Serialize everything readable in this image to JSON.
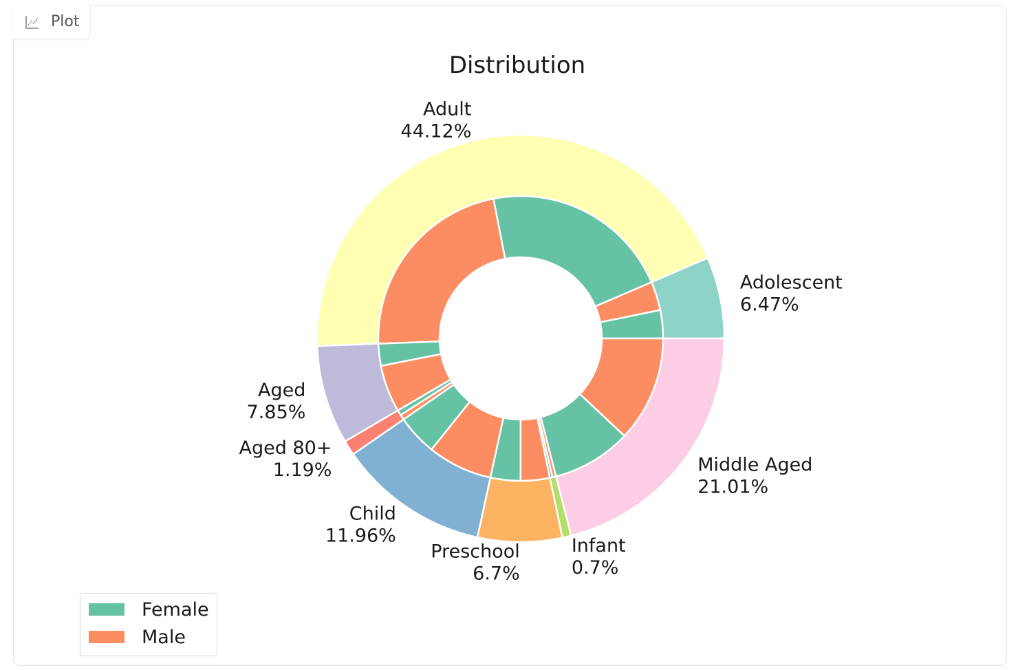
{
  "panel": {
    "tab_label": "Plot",
    "tab_icon": "chart-icon"
  },
  "chart_data": {
    "type": "pie",
    "title": "Distribution",
    "outer_ring": [
      {
        "label": "Adolescent",
        "value": 6.47,
        "pct_label": "6.47%",
        "color": "#8dd3c7"
      },
      {
        "label": "Adult",
        "value": 44.12,
        "pct_label": "44.12%",
        "color": "#ffffb3"
      },
      {
        "label": "Aged",
        "value": 7.85,
        "pct_label": "7.85%",
        "color": "#bebada"
      },
      {
        "label": "Aged 80+",
        "value": 1.19,
        "pct_label": "1.19%",
        "color": "#fb8072"
      },
      {
        "label": "Child",
        "value": 11.96,
        "pct_label": "11.96%",
        "color": "#80b1d3"
      },
      {
        "label": "Preschool",
        "value": 6.7,
        "pct_label": "6.7%",
        "color": "#fdb462"
      },
      {
        "label": "Infant",
        "value": 0.7,
        "pct_label": "0.7%",
        "color": "#b3de69"
      },
      {
        "label": "Middle Aged",
        "value": 21.01,
        "pct_label": "21.01%",
        "color": "#fccde5"
      }
    ],
    "inner_ring": [
      {
        "group": "Adolescent",
        "gender": "Female",
        "value": 3.2
      },
      {
        "group": "Adolescent",
        "gender": "Male",
        "value": 3.27
      },
      {
        "group": "Adult",
        "gender": "Female",
        "value": 21.6
      },
      {
        "group": "Adult",
        "gender": "Male",
        "value": 22.52
      },
      {
        "group": "Aged",
        "gender": "Female",
        "value": 2.5
      },
      {
        "group": "Aged",
        "gender": "Male",
        "value": 5.35
      },
      {
        "group": "Aged 80+",
        "gender": "Female",
        "value": 0.6
      },
      {
        "group": "Aged 80+",
        "gender": "Male",
        "value": 0.59
      },
      {
        "group": "Child",
        "gender": "Female",
        "value": 4.6
      },
      {
        "group": "Child",
        "gender": "Male",
        "value": 7.36
      },
      {
        "group": "Preschool",
        "gender": "Female",
        "value": 3.4
      },
      {
        "group": "Preschool",
        "gender": "Male",
        "value": 3.3
      },
      {
        "group": "Infant",
        "gender": "Female",
        "value": 0.3
      },
      {
        "group": "Infant",
        "gender": "Male",
        "value": 0.4
      },
      {
        "group": "Middle Aged",
        "gender": "Female",
        "value": 9.01
      },
      {
        "group": "Middle Aged",
        "gender": "Male",
        "value": 12.0
      }
    ],
    "legend": [
      {
        "label": "Female",
        "color": "#66c2a5"
      },
      {
        "label": "Male",
        "color": "#fc8d62"
      }
    ],
    "legend_position": "lower-left",
    "start_angle_deg": 0,
    "direction": "counterclockwise"
  }
}
